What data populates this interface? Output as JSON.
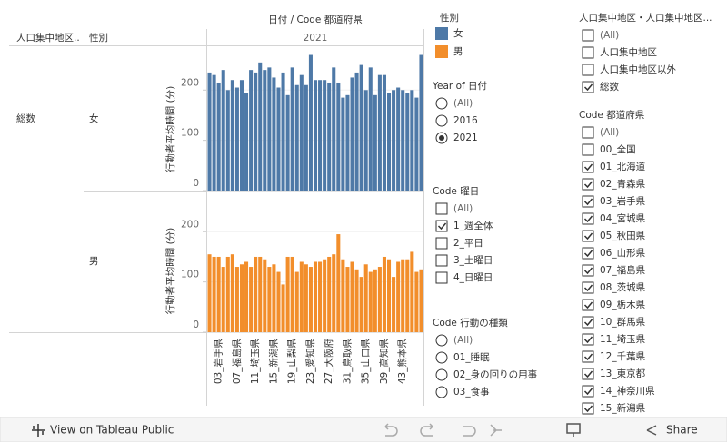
{
  "chart_data": {
    "type": "bar",
    "title": "日付 / Code 都道府県",
    "column_header": "2021",
    "row_headers": [
      "人口集中地区..",
      "性別"
    ],
    "row_label": "総数",
    "y_label": "行動者平均時間 (分)",
    "categories": [
      null,
      null,
      "03_岩手県",
      null,
      null,
      null,
      "07_福島県",
      null,
      null,
      null,
      "11_埼玉県",
      null,
      null,
      null,
      "15_新潟県",
      null,
      null,
      null,
      "19_山梨県",
      null,
      null,
      null,
      "23_愛知県",
      null,
      null,
      null,
      "27_大阪府",
      null,
      null,
      null,
      "31_鳥取県",
      null,
      null,
      null,
      "35_山口県",
      null,
      null,
      null,
      "39_高知県",
      null,
      null,
      null,
      "43_熊本県",
      null,
      null,
      null,
      null
    ],
    "series": [
      {
        "name": "女",
        "color": "#4e79a7",
        "values": [
          235,
          230,
          215,
          240,
          200,
          220,
          205,
          220,
          195,
          240,
          235,
          255,
          240,
          245,
          225,
          205,
          235,
          190,
          245,
          210,
          230,
          210,
          270,
          220,
          220,
          220,
          215,
          245,
          215,
          185,
          190,
          225,
          235,
          250,
          200,
          245,
          190,
          230,
          230,
          195,
          200,
          205,
          200,
          195,
          200,
          185,
          270
        ]
      },
      {
        "name": "男",
        "color": "#f28e2b",
        "values": [
          155,
          150,
          150,
          130,
          150,
          155,
          130,
          135,
          140,
          130,
          150,
          150,
          145,
          130,
          135,
          120,
          95,
          150,
          150,
          120,
          140,
          135,
          130,
          140,
          140,
          145,
          150,
          155,
          195,
          145,
          130,
          140,
          125,
          110,
          135,
          120,
          125,
          130,
          150,
          145,
          110,
          140,
          145,
          145,
          160,
          120,
          125
        ]
      }
    ],
    "ylim": [
      0,
      280
    ],
    "yticks": [
      0,
      100,
      200
    ],
    "grid": true,
    "legend_title": "性別"
  },
  "filters": [
    {
      "title": "Year of 日付",
      "kind": "radio",
      "items": [
        {
          "label": "(All)",
          "checked": false
        },
        {
          "label": "2016",
          "checked": false
        },
        {
          "label": "2021",
          "checked": true
        }
      ]
    },
    {
      "title": "Code 曜日",
      "kind": "checkbox",
      "items": [
        {
          "label": "(All)",
          "checked": false
        },
        {
          "label": "1_週全体",
          "checked": true
        },
        {
          "label": "2_平日",
          "checked": false
        },
        {
          "label": "3_土曜日",
          "checked": false
        },
        {
          "label": "4_日曜日",
          "checked": false
        }
      ]
    },
    {
      "title": "Code 行動の種類",
      "kind": "radio",
      "items": [
        {
          "label": "(All)",
          "checked": false
        },
        {
          "label": "01_睡眠",
          "checked": false
        },
        {
          "label": "02_身の回りの用事",
          "checked": false
        },
        {
          "label": "03_食事",
          "checked": false
        }
      ]
    },
    {
      "title": "人口集中地区・人口集中地区...",
      "kind": "checkbox",
      "items": [
        {
          "label": "(All)",
          "checked": false
        },
        {
          "label": "人口集中地区",
          "checked": false
        },
        {
          "label": "人口集中地区以外",
          "checked": false
        },
        {
          "label": "総数",
          "checked": true
        }
      ]
    },
    {
      "title": "Code 都道府県",
      "kind": "checkbox",
      "items": [
        {
          "label": "(All)",
          "checked": false
        },
        {
          "label": "00_全国",
          "checked": false
        },
        {
          "label": "01_北海道",
          "checked": true
        },
        {
          "label": "02_青森県",
          "checked": true
        },
        {
          "label": "03_岩手県",
          "checked": true
        },
        {
          "label": "04_宮城県",
          "checked": true
        },
        {
          "label": "05_秋田県",
          "checked": true
        },
        {
          "label": "06_山形県",
          "checked": true
        },
        {
          "label": "07_福島県",
          "checked": true
        },
        {
          "label": "08_茨城県",
          "checked": true
        },
        {
          "label": "09_栃木県",
          "checked": true
        },
        {
          "label": "10_群馬県",
          "checked": true
        },
        {
          "label": "11_埼玉県",
          "checked": true
        },
        {
          "label": "12_千葉県",
          "checked": true
        },
        {
          "label": "13_東京都",
          "checked": true
        },
        {
          "label": "14_神奈川県",
          "checked": true
        },
        {
          "label": "15_新潟県",
          "checked": true
        }
      ]
    }
  ],
  "footer": {
    "link": "View on Tableau Public",
    "share": "Share"
  }
}
